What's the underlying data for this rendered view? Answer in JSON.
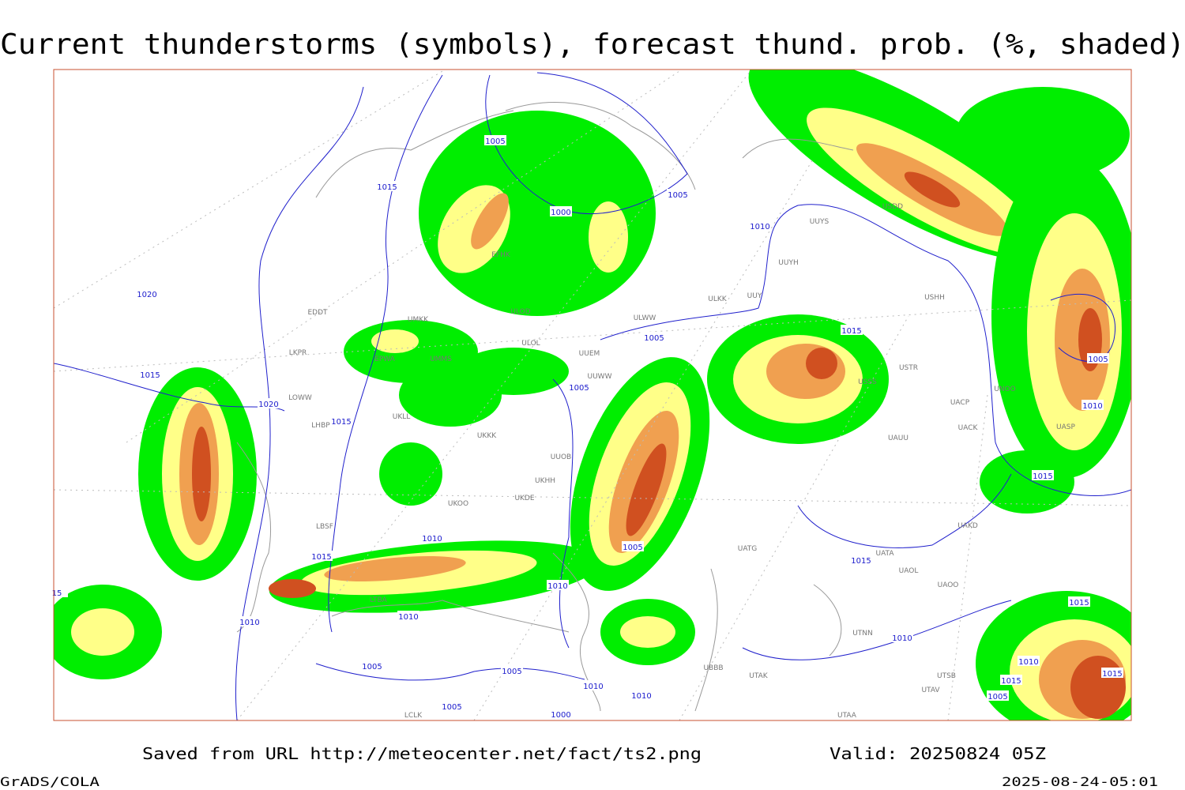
{
  "header": {
    "title": "Current thunderstorms (symbols), forecast thund. prob. (%, shaded)"
  },
  "footer": {
    "source": "Saved from URL http://meteocenter.net/fact/ts2.png",
    "valid": "Valid: 20250824 05Z",
    "credit": "GrADS/COLA",
    "timestamp": "2025-08-24-05:01"
  },
  "isobar_labels": [
    "1005",
    "1015",
    "1000",
    "1005",
    "1010",
    "1005",
    "1015",
    "1005",
    "1020",
    "1015",
    "1020",
    "1015",
    "1010",
    "1015",
    "1005",
    "1015",
    "1010",
    "1010",
    "1010",
    "1005",
    "1005",
    "1010",
    "1010",
    "1005",
    "1000",
    "1010",
    "1005",
    "1010",
    "1015",
    "1015",
    "1010",
    "1015",
    "1015",
    "1005",
    "15"
  ],
  "station_labels": [
    "UUYS",
    "UUYH",
    "ULKK",
    "UUY",
    "USHH",
    "ULWW",
    "ULOD",
    "ULOL",
    "UUEM",
    "USTR",
    "UUWW",
    "UNOO",
    "UACP",
    "UACK",
    "UASP",
    "UAUU",
    "UKKK",
    "UUOB",
    "UKHH",
    "UKOO",
    "UKDE",
    "UAKD",
    "UATG",
    "UATA",
    "UAOL",
    "UAOO",
    "UTNN",
    "UBBB",
    "UTAK",
    "UTAA",
    "UTSB",
    "UTAV",
    "LKPR",
    "EDDT",
    "LOWW",
    "LHBP",
    "LBSF",
    "LTBA",
    "LCLK",
    "UMMS",
    "EFHK",
    "UMKK",
    "EPWA",
    "UKLL",
    "USDD",
    "USSS"
  ]
}
